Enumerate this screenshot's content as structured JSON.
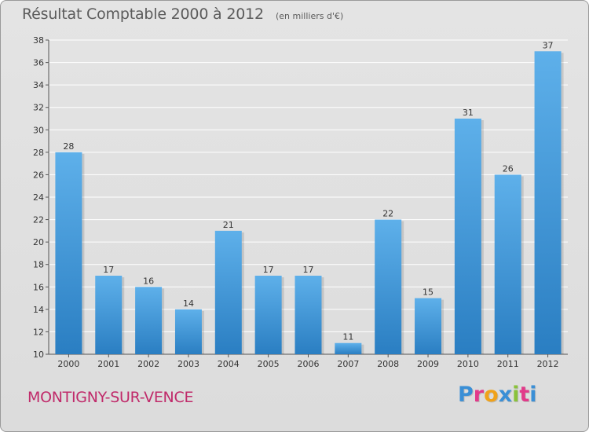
{
  "header": {
    "title": "Résultat Comptable 2000 à 2012",
    "subtitle": "(en milliers d'€)"
  },
  "footer": {
    "commune": "MONTIGNY-SUR-VENCE",
    "logo_text": "Proxiti"
  },
  "colors": {
    "bar": "#3a94d8",
    "bar_dark": "#2a7ec2",
    "commune": "#c02a6a",
    "grid": "#ffffff",
    "background": "#e0e0e0"
  },
  "chart_data": {
    "type": "bar",
    "categories": [
      "2000",
      "2001",
      "2002",
      "2003",
      "2004",
      "2005",
      "2006",
      "2007",
      "2008",
      "2009",
      "2010",
      "2011",
      "2012"
    ],
    "values": [
      28,
      17,
      16,
      14,
      21,
      17,
      17,
      11,
      22,
      15,
      31,
      26,
      37
    ],
    "ylim": [
      10,
      38
    ],
    "yticks": [
      10,
      12,
      14,
      16,
      18,
      20,
      22,
      24,
      26,
      28,
      30,
      32,
      34,
      36,
      38
    ],
    "grid": true,
    "data_labels": true
  }
}
